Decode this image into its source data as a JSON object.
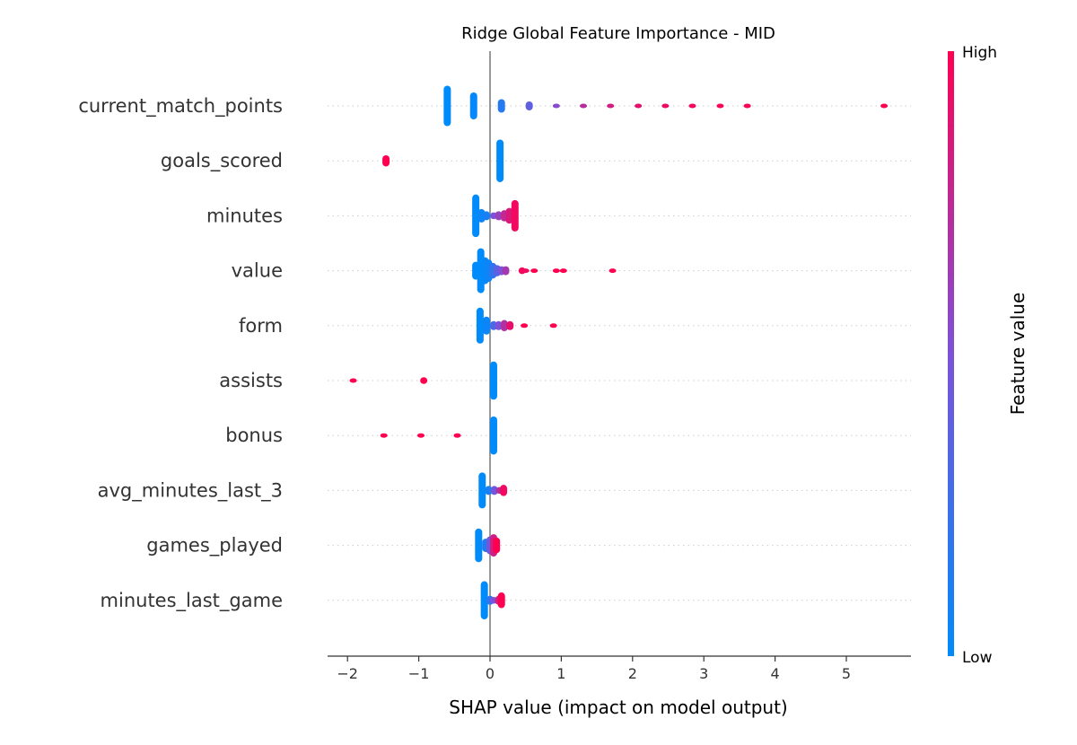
{
  "chart_data": {
    "type": "scatter",
    "title": "Ridge Global Feature Importance - MID",
    "xlabel": "SHAP value (impact on model output)",
    "xlim": [
      -2.3,
      5.9
    ],
    "xticks": [
      -2,
      -1,
      0,
      1,
      2,
      3,
      4,
      5
    ],
    "xtick_labels": [
      "−2",
      "−1",
      "0",
      "1",
      "2",
      "3",
      "4",
      "5"
    ],
    "zero_line": 0,
    "colorbar": {
      "label": "Feature value",
      "high_label": "High",
      "low_label": "Low",
      "low_color": "#008bfb",
      "mid_color": "#7c52d8",
      "high_color": "#ff0051"
    },
    "features": [
      {
        "name": "current_match_points",
        "points": [
          {
            "x": -0.6,
            "v": 0.0,
            "h": 0.9
          },
          {
            "x": -0.23,
            "v": 0.02,
            "h": 0.6
          },
          {
            "x": 0.16,
            "v": 0.15,
            "h": 0.3
          },
          {
            "x": 0.55,
            "v": 0.38,
            "h": 0.2
          },
          {
            "x": 0.93,
            "v": 0.55,
            "h": 0.1
          },
          {
            "x": 1.31,
            "v": 0.72,
            "h": 0.1
          },
          {
            "x": 1.69,
            "v": 0.82,
            "h": 0.1
          },
          {
            "x": 2.08,
            "v": 0.9,
            "h": 0.1
          },
          {
            "x": 2.46,
            "v": 0.93,
            "h": 0.1
          },
          {
            "x": 2.84,
            "v": 0.96,
            "h": 0.1
          },
          {
            "x": 3.23,
            "v": 0.97,
            "h": 0.1
          },
          {
            "x": 3.61,
            "v": 0.98,
            "h": 0.1
          },
          {
            "x": 5.53,
            "v": 1.0,
            "h": 0.1
          }
        ]
      },
      {
        "name": "goals_scored",
        "points": [
          {
            "x": 0.14,
            "v": 0.0,
            "h": 0.95
          },
          {
            "x": -1.46,
            "v": 1.0,
            "h": 0.25
          }
        ]
      },
      {
        "name": "minutes",
        "points": [
          {
            "x": -0.2,
            "v": 0.0,
            "h": 0.95
          },
          {
            "x": -0.12,
            "v": 0.05,
            "h": 0.3
          },
          {
            "x": -0.05,
            "v": 0.1,
            "h": 0.2
          },
          {
            "x": 0.05,
            "v": 0.5,
            "h": 0.15
          },
          {
            "x": 0.12,
            "v": 0.6,
            "h": 0.2
          },
          {
            "x": 0.2,
            "v": 0.75,
            "h": 0.25
          },
          {
            "x": 0.27,
            "v": 0.85,
            "h": 0.35
          },
          {
            "x": 0.35,
            "v": 0.95,
            "h": 0.7
          }
        ]
      },
      {
        "name": "value",
        "points": [
          {
            "x": -0.2,
            "v": 0.0,
            "h": 0.4
          },
          {
            "x": -0.13,
            "v": 0.0,
            "h": 1.0
          },
          {
            "x": -0.07,
            "v": 0.02,
            "h": 0.6
          },
          {
            "x": -0.02,
            "v": 0.05,
            "h": 0.5
          },
          {
            "x": 0.04,
            "v": 0.2,
            "h": 0.35
          },
          {
            "x": 0.1,
            "v": 0.35,
            "h": 0.25
          },
          {
            "x": 0.16,
            "v": 0.5,
            "h": 0.2
          },
          {
            "x": 0.22,
            "v": 0.65,
            "h": 0.2
          },
          {
            "x": 0.45,
            "v": 0.95,
            "h": 0.15
          },
          {
            "x": 0.5,
            "v": 0.95,
            "h": 0.1
          },
          {
            "x": 0.62,
            "v": 1.0,
            "h": 0.1
          },
          {
            "x": 0.93,
            "v": 1.0,
            "h": 0.1
          },
          {
            "x": 1.03,
            "v": 1.0,
            "h": 0.1
          },
          {
            "x": 1.72,
            "v": 1.0,
            "h": 0.1
          }
        ]
      },
      {
        "name": "form",
        "points": [
          {
            "x": -0.14,
            "v": 0.0,
            "h": 0.8
          },
          {
            "x": -0.05,
            "v": 0.05,
            "h": 0.4
          },
          {
            "x": 0.05,
            "v": 0.3,
            "h": 0.2
          },
          {
            "x": 0.12,
            "v": 0.5,
            "h": 0.2
          },
          {
            "x": 0.2,
            "v": 0.7,
            "h": 0.25
          },
          {
            "x": 0.28,
            "v": 0.9,
            "h": 0.2
          },
          {
            "x": 0.48,
            "v": 1.0,
            "h": 0.1
          },
          {
            "x": 0.89,
            "v": 1.0,
            "h": 0.1
          }
        ]
      },
      {
        "name": "assists",
        "points": [
          {
            "x": 0.05,
            "v": 0.0,
            "h": 0.85
          },
          {
            "x": -0.93,
            "v": 1.0,
            "h": 0.15
          },
          {
            "x": -1.92,
            "v": 1.0,
            "h": 0.1
          }
        ]
      },
      {
        "name": "bonus",
        "points": [
          {
            "x": 0.05,
            "v": 0.0,
            "h": 0.85
          },
          {
            "x": -0.46,
            "v": 1.0,
            "h": 0.1
          },
          {
            "x": -0.97,
            "v": 1.0,
            "h": 0.1
          },
          {
            "x": -1.49,
            "v": 1.0,
            "h": 0.1
          }
        ]
      },
      {
        "name": "avg_minutes_last_3",
        "points": [
          {
            "x": -0.11,
            "v": 0.0,
            "h": 0.8
          },
          {
            "x": -0.02,
            "v": 0.1,
            "h": 0.2
          },
          {
            "x": 0.06,
            "v": 0.45,
            "h": 0.2
          },
          {
            "x": 0.13,
            "v": 0.7,
            "h": 0.15
          },
          {
            "x": 0.19,
            "v": 0.95,
            "h": 0.25
          }
        ]
      },
      {
        "name": "games_played",
        "points": [
          {
            "x": -0.16,
            "v": 0.0,
            "h": 0.75
          },
          {
            "x": -0.06,
            "v": 0.15,
            "h": 0.3
          },
          {
            "x": 0.0,
            "v": 0.45,
            "h": 0.4
          },
          {
            "x": 0.05,
            "v": 0.8,
            "h": 0.5
          },
          {
            "x": 0.09,
            "v": 1.0,
            "h": 0.35
          }
        ]
      },
      {
        "name": "minutes_last_game",
        "points": [
          {
            "x": -0.08,
            "v": 0.0,
            "h": 0.85
          },
          {
            "x": 0.0,
            "v": 0.2,
            "h": 0.2
          },
          {
            "x": 0.05,
            "v": 0.5,
            "h": 0.15
          },
          {
            "x": 0.12,
            "v": 0.8,
            "h": 0.2
          },
          {
            "x": 0.16,
            "v": 1.0,
            "h": 0.35
          }
        ]
      }
    ]
  }
}
